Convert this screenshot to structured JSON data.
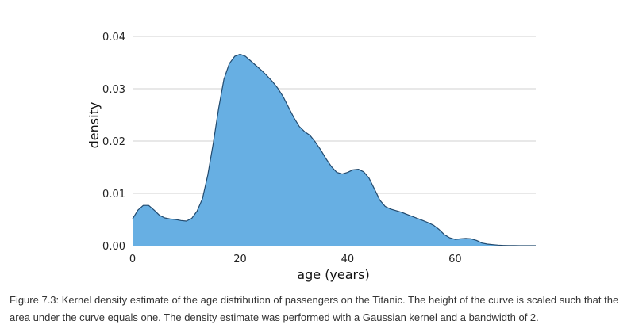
{
  "colors": {
    "fill": "#67afe3",
    "stroke": "#224a6e",
    "grid": "#d0d0d0"
  },
  "chart_data": {
    "type": "area",
    "xlabel": "age (years)",
    "ylabel": "density",
    "xlim": [
      0,
      75
    ],
    "ylim": [
      0,
      0.04
    ],
    "xticks": [
      "0",
      "20",
      "40",
      "60"
    ],
    "xtick_values": [
      0,
      20,
      40,
      60
    ],
    "yticks": [
      "0.00",
      "0.01",
      "0.02",
      "0.03",
      "0.04"
    ],
    "ytick_values": [
      0,
      0.01,
      0.02,
      0.03,
      0.04
    ],
    "grid": "horizontal",
    "series": [
      {
        "x": [
          0,
          1,
          2,
          3,
          4,
          5,
          6,
          7,
          8,
          9,
          10,
          11,
          12,
          13,
          14,
          15,
          16,
          17,
          18,
          19,
          20,
          21,
          22,
          23,
          24,
          25,
          26,
          27,
          28,
          29,
          30,
          31,
          32,
          33,
          34,
          35,
          36,
          37,
          38,
          39,
          40,
          41,
          42,
          43,
          44,
          45,
          46,
          47,
          48,
          49,
          50,
          51,
          52,
          53,
          54,
          55,
          56,
          57,
          58,
          59,
          60,
          61,
          62,
          63,
          64,
          65,
          66,
          67,
          68,
          69,
          70,
          71,
          72,
          73,
          74,
          75
        ],
        "y": [
          0.0051,
          0.0068,
          0.0077,
          0.0077,
          0.0068,
          0.0058,
          0.0053,
          0.0051,
          0.005,
          0.0048,
          0.0047,
          0.0052,
          0.0066,
          0.009,
          0.0135,
          0.0195,
          0.0262,
          0.0318,
          0.0348,
          0.0362,
          0.0366,
          0.0362,
          0.0353,
          0.0344,
          0.0335,
          0.0325,
          0.0314,
          0.0301,
          0.0285,
          0.0265,
          0.0245,
          0.0228,
          0.0218,
          0.0211,
          0.0198,
          0.0183,
          0.0166,
          0.0151,
          0.014,
          0.0137,
          0.014,
          0.0145,
          0.0146,
          0.0141,
          0.0129,
          0.0108,
          0.0087,
          0.0075,
          0.007,
          0.0067,
          0.0064,
          0.006,
          0.0056,
          0.0052,
          0.0048,
          0.0044,
          0.0039,
          0.0031,
          0.0021,
          0.0015,
          0.0012,
          0.0013,
          0.0014,
          0.0013,
          0.001,
          0.0005,
          0.0003,
          0.0002,
          0.0001,
          5e-05,
          2e-05,
          1e-05,
          0,
          0,
          0,
          0
        ]
      }
    ]
  },
  "caption": "Figure 7.3: Kernel density estimate of the age distribution of passengers on the Titanic. The height of the curve is scaled such that the area under the curve equals one. The density estimate was performed with a Gaussian kernel and a bandwidth of 2."
}
